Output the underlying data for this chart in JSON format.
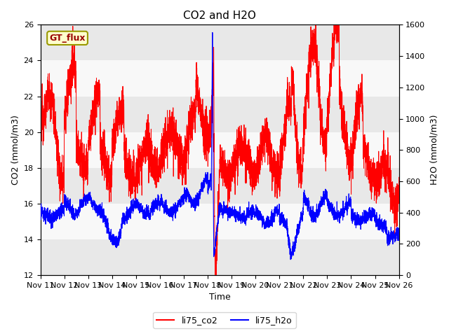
{
  "title": "CO2 and H2O",
  "xlabel": "Time",
  "ylabel_left": "CO2 (mmol/m3)",
  "ylabel_right": "H2O (mmol/m3)",
  "ylim_left": [
    12,
    26
  ],
  "ylim_right": [
    0,
    1600
  ],
  "annotation_text": "GT_flux",
  "annotation_box_color": "#ffffcc",
  "annotation_box_edge": "#999900",
  "annotation_text_color": "#990000",
  "bg_color": "#f0f0f0",
  "band_colors": [
    "#ffffff",
    "#e8e8e8"
  ],
  "co2_color": "red",
  "h2o_color": "blue",
  "xtick_labels": [
    "Nov 11",
    "Nov 12",
    "Nov 13",
    "Nov 14",
    "Nov 15",
    "Nov 16",
    "Nov 17",
    "Nov 18",
    "Nov 19",
    "Nov 20",
    "Nov 21",
    "Nov 22",
    "Nov 23",
    "Nov 24",
    "Nov 25",
    "Nov 26"
  ],
  "yticks_left": [
    12,
    14,
    16,
    18,
    20,
    22,
    24,
    26
  ],
  "yticks_right": [
    0,
    200,
    400,
    600,
    800,
    1000,
    1200,
    1400,
    1600
  ]
}
